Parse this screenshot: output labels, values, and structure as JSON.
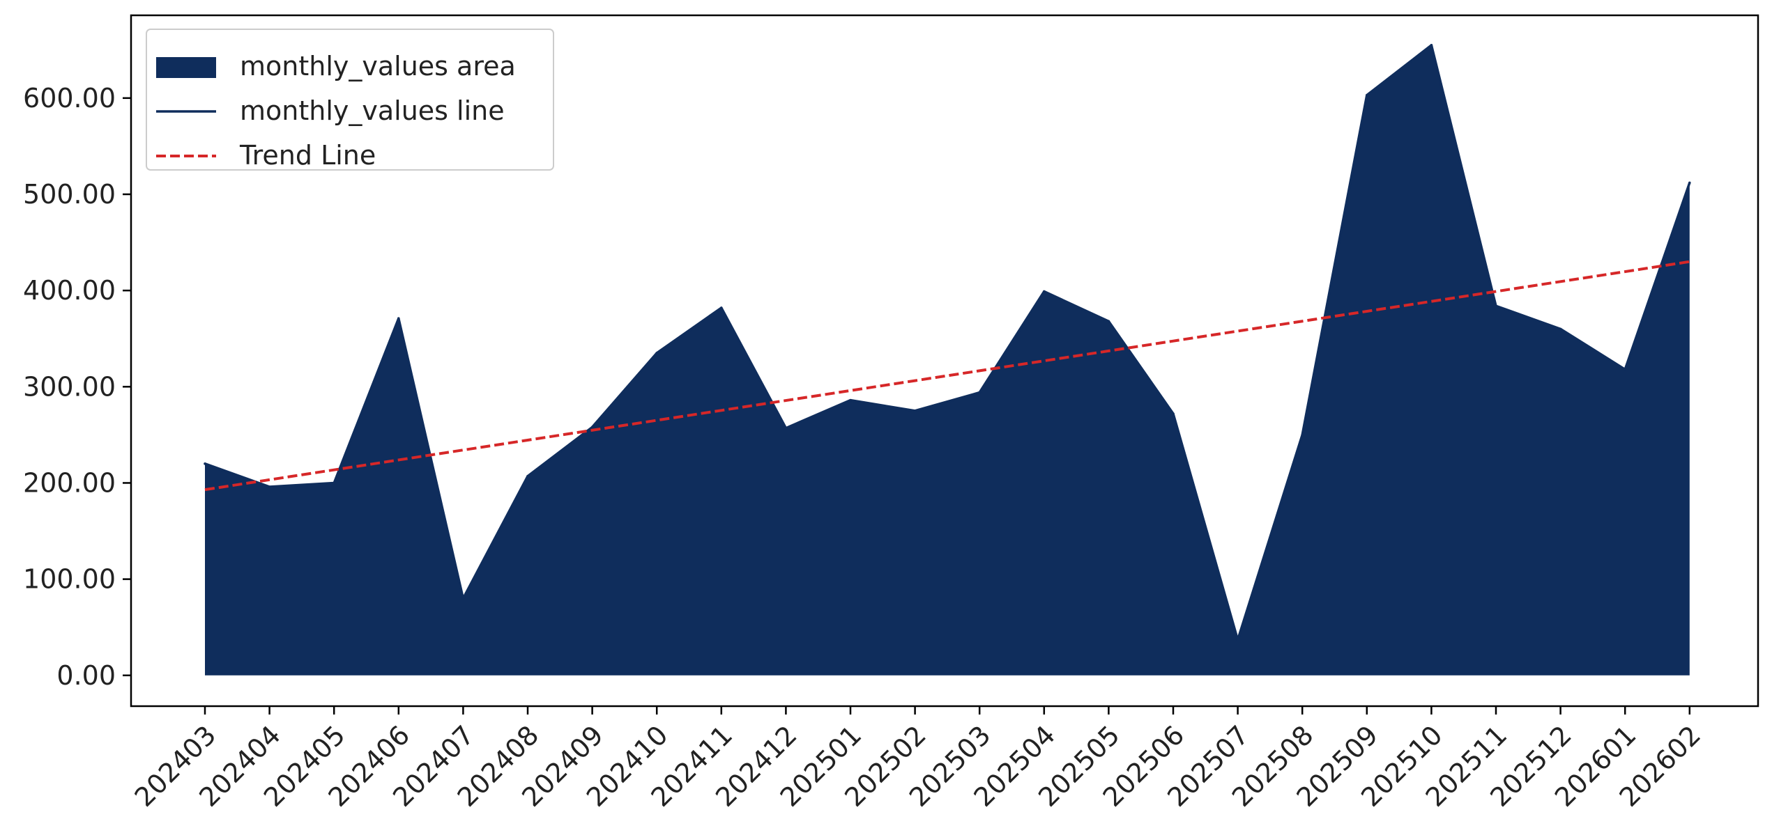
{
  "chart_data": {
    "type": "area",
    "categories": [
      "202403",
      "202404",
      "202405",
      "202406",
      "202407",
      "202408",
      "202409",
      "202410",
      "202411",
      "202412",
      "202501",
      "202502",
      "202503",
      "202504",
      "202505",
      "202506",
      "202507",
      "202508",
      "202509",
      "202510",
      "202511",
      "202512",
      "202601",
      "202602"
    ],
    "series": [
      {
        "name": "monthly_values area",
        "kind": "area",
        "color": "#0f2d5c",
        "values": [
          220,
          196,
          200,
          371,
          80,
          207,
          258,
          335,
          382,
          257,
          286,
          275,
          294,
          399,
          368,
          272,
          37,
          250,
          603,
          655,
          384,
          360,
          318,
          512
        ]
      },
      {
        "name": "monthly_values line",
        "kind": "line",
        "color": "#0f2d5c",
        "values": [
          220,
          196,
          200,
          371,
          80,
          207,
          258,
          335,
          382,
          257,
          286,
          275,
          294,
          399,
          368,
          272,
          37,
          250,
          603,
          655,
          384,
          360,
          318,
          512
        ]
      },
      {
        "name": "Trend Line",
        "kind": "trend",
        "color": "#d62728",
        "values": [
          193,
          203.3,
          213.6,
          223.9,
          234.2,
          244.5,
          254.8,
          265.1,
          275.4,
          285.7,
          296.0,
          306.3,
          316.6,
          326.9,
          337.2,
          347.5,
          357.8,
          368.1,
          378.4,
          388.7,
          399.0,
          409.3,
          419.6,
          430
        ]
      }
    ],
    "y_ticks": [
      "0.00",
      "100.00",
      "200.00",
      "300.00",
      "400.00",
      "500.00",
      "600.00"
    ],
    "ylim": [
      -32,
      686
    ],
    "title": "",
    "xlabel": "",
    "ylabel": "",
    "legend": {
      "position": "top-left",
      "entries": [
        "monthly_values area",
        "monthly_values line",
        "Trend Line"
      ]
    },
    "grid": false
  }
}
